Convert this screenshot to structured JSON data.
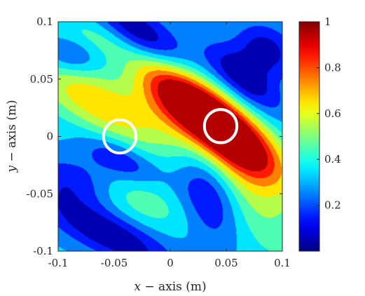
{
  "chart_data": {
    "type": "heatmap",
    "style": "filled-contour",
    "title": "",
    "xlabel_var": "x",
    "xlabel_rest": " − axis (m)",
    "ylabel_var": "y",
    "ylabel_rest": " − axis (m)",
    "xlim": [
      -0.1,
      0.1
    ],
    "ylim": [
      -0.1,
      0.1
    ],
    "x_ticks": [
      -0.1,
      -0.05,
      0,
      0.05,
      0.1
    ],
    "x_tick_labels": [
      "-0.1",
      "-0.05",
      "0",
      "0.05",
      "0.1"
    ],
    "y_ticks": [
      -0.1,
      -0.05,
      0,
      0.05,
      0.1
    ],
    "y_tick_labels": [
      "-0.1",
      "-0.05",
      "0",
      "0.05",
      "0.1"
    ],
    "colorbar": {
      "limits": [
        0,
        1
      ],
      "ticks": [
        0.2,
        0.4,
        0.6,
        0.8,
        1
      ],
      "tick_labels": [
        "0.2",
        "0.4",
        "0.6",
        "0.8",
        "1"
      ],
      "colormap": "jet"
    },
    "contour_levels": 10,
    "field_components": [
      {
        "kind": "gaussian",
        "amplitude": 0.98,
        "center": [
          0.045,
          0.008
        ],
        "sigma_major": 0.045,
        "sigma_minor": 0.016,
        "angle_deg": -38
      },
      {
        "kind": "gaussian",
        "amplitude": 0.36,
        "center": [
          -0.065,
          0.03
        ],
        "sigma_major": 0.05,
        "sigma_minor": 0.017,
        "angle_deg": -30
      },
      {
        "kind": "gaussian",
        "amplitude": 0.3,
        "center": [
          0.0,
          0.045
        ],
        "sigma_major": 0.03,
        "sigma_minor": 0.02,
        "angle_deg": -45
      },
      {
        "kind": "gaussian",
        "amplitude": 0.16,
        "center": [
          -0.03,
          -0.055
        ],
        "sigma_major": 0.035,
        "sigma_minor": 0.014,
        "angle_deg": -20
      },
      {
        "kind": "gaussian",
        "amplitude": 0.22,
        "center": [
          0.065,
          -0.045
        ],
        "sigma_major": 0.05,
        "sigma_minor": 0.022,
        "angle_deg": -50
      },
      {
        "kind": "gaussian",
        "amplitude": 0.14,
        "center": [
          -0.065,
          0.085
        ],
        "sigma_major": 0.025,
        "sigma_minor": 0.012,
        "angle_deg": -20
      },
      {
        "kind": "gaussian",
        "amplitude": -0.38,
        "center": [
          -0.02,
          0.085
        ],
        "sigma_major": 0.04,
        "sigma_minor": 0.013,
        "angle_deg": -35
      },
      {
        "kind": "gaussian",
        "amplitude": -0.22,
        "center": [
          -0.09,
          0.07
        ],
        "sigma_major": 0.02,
        "sigma_minor": 0.012,
        "angle_deg": -10
      },
      {
        "kind": "gaussian",
        "amplitude": -0.32,
        "center": [
          -0.055,
          -0.085
        ],
        "sigma_major": 0.045,
        "sigma_minor": 0.013,
        "angle_deg": -25
      },
      {
        "kind": "gaussian",
        "amplitude": -0.3,
        "center": [
          0.035,
          -0.05
        ],
        "sigma_major": 0.03,
        "sigma_minor": 0.018,
        "angle_deg": -70
      },
      {
        "kind": "gaussian",
        "amplitude": -0.3,
        "center": [
          0.065,
          0.05
        ],
        "sigma_major": 0.03,
        "sigma_minor": 0.012,
        "angle_deg": -40
      },
      {
        "kind": "gaussian",
        "amplitude": -0.22,
        "center": [
          -0.045,
          -0.02
        ],
        "sigma_major": 0.025,
        "sigma_minor": 0.01,
        "angle_deg": -25
      },
      {
        "kind": "gaussian",
        "amplitude": -0.28,
        "center": [
          0.085,
          0.075
        ],
        "sigma_major": 0.02,
        "sigma_minor": 0.015,
        "angle_deg": -30
      },
      {
        "kind": "gaussian",
        "amplitude": -0.22,
        "center": [
          -0.085,
          -0.04
        ],
        "sigma_major": 0.03,
        "sigma_minor": 0.015,
        "angle_deg": -15
      }
    ],
    "field_baseline": 0.32,
    "markers": [
      {
        "shape": "circle",
        "center": [
          -0.045,
          0.0
        ],
        "radius": 0.0145,
        "color": "#ffffff"
      },
      {
        "shape": "circle",
        "center": [
          0.045,
          0.009
        ],
        "radius": 0.0145,
        "color": "#ffffff"
      }
    ]
  }
}
